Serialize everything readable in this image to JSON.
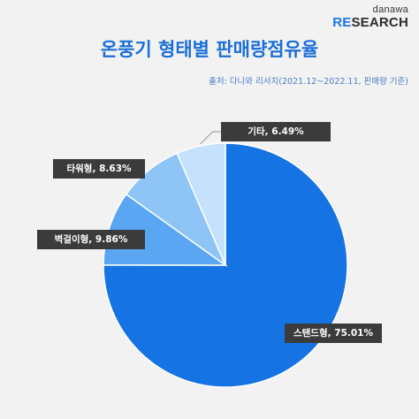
{
  "logo": {
    "top": "danawa",
    "bottom_re": "RE",
    "bottom_rest": "SEARCH"
  },
  "title": "온풍기 형태별 판매량점유율",
  "source": "출처: 다나와 리서치(2021.12~2022.11, 판매량 기준)",
  "colors": {
    "background": "#f2f2f2",
    "title": "#1a6fd8",
    "label_box": "#3b3b3b",
    "slice_stroke": "#ffffff"
  },
  "chart_data": {
    "type": "pie",
    "title": "온풍기 형태별 판매량점유율",
    "start_angle_deg": 0,
    "direction": "clockwise",
    "slices": [
      {
        "name": "스탠드형",
        "value": 75.01,
        "label": "스탠드형, 75.01%",
        "color": "#1673e3"
      },
      {
        "name": "벽걸이형",
        "value": 9.86,
        "label": "벽걸이형, 9.86%",
        "color": "#5aa6f2"
      },
      {
        "name": "타워형",
        "value": 8.63,
        "label": "타워형, 8.63%",
        "color": "#8fc4f7"
      },
      {
        "name": "기타",
        "value": 6.49,
        "label": "기타, 6.49%",
        "color": "#c5e1fb"
      }
    ]
  }
}
